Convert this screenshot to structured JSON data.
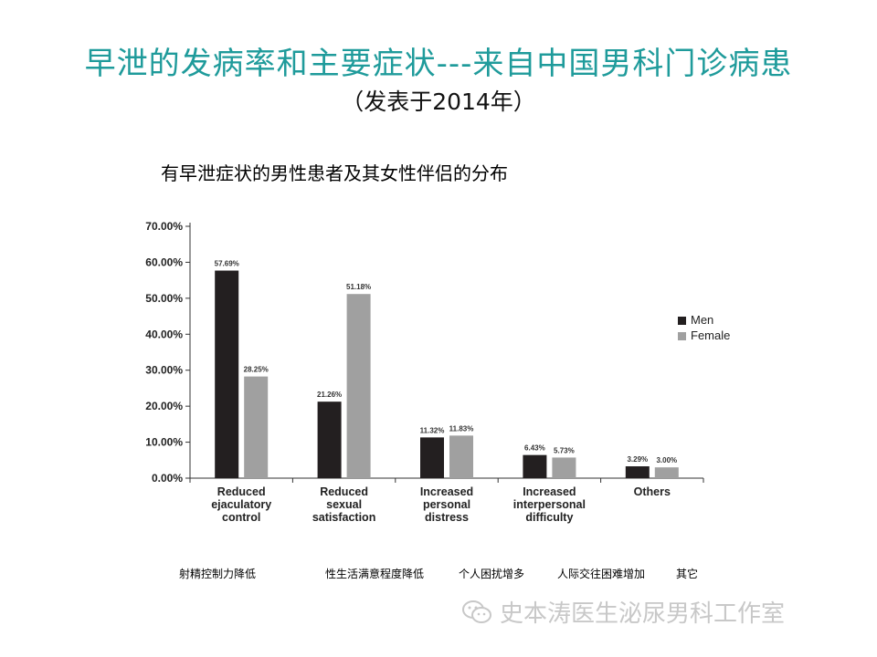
{
  "title": "早泄的发病率和主要症状---来自中国男科门诊病患",
  "subtitle": "（发表于2014年）",
  "chart_heading": "有早泄症状的男性患者及其女性伴侣的分布",
  "chinese_labels": [
    "射精控制力降低",
    "性生活满意程度降低",
    "个人困扰增多",
    "人际交往困难增加",
    "其它"
  ],
  "watermark": "史本涛医生泌尿男科工作室",
  "colors": {
    "title": "#1f9b9b",
    "men": "#231f20",
    "female": "#a0a0a0"
  },
  "chart_data": {
    "type": "bar",
    "categories": [
      [
        "Reduced",
        "ejaculatory",
        "control"
      ],
      [
        "Reduced",
        "sexual",
        "satisfaction"
      ],
      [
        "Increased",
        "personal",
        "distress"
      ],
      [
        "Increased",
        "interpersonal",
        "difficulty"
      ],
      [
        "Others"
      ]
    ],
    "series": [
      {
        "name": "Men",
        "values": [
          57.69,
          21.26,
          11.32,
          6.43,
          3.29
        ],
        "labels": [
          "57.69%",
          "21.26%",
          "11.32%",
          "6.43%",
          "3.29%"
        ]
      },
      {
        "name": "Female",
        "values": [
          28.25,
          51.18,
          11.83,
          5.73,
          3.0
        ],
        "labels": [
          "28.25%",
          "51.18%",
          "11.83%",
          "5.73%",
          "3.00%"
        ]
      }
    ],
    "yticks": [
      "0.00%",
      "10.00%",
      "20.00%",
      "30.00%",
      "40.00%",
      "50.00%",
      "60.00%",
      "70.00%"
    ],
    "ylim": [
      0,
      70
    ],
    "legend_position": "right",
    "grid": false
  }
}
